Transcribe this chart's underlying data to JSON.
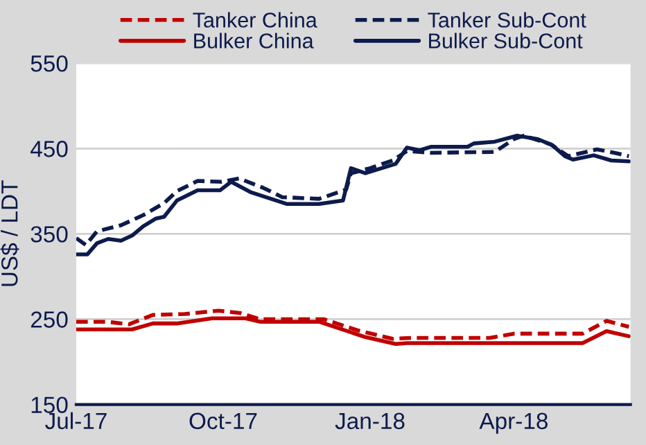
{
  "chart_data": {
    "type": "line",
    "ylabel": "US$ / LDT",
    "ylim": [
      150,
      550
    ],
    "yticks": [
      150,
      250,
      350,
      450,
      550
    ],
    "xlim": [
      "2017-07-01",
      "2018-06-13"
    ],
    "xticks": [
      {
        "value": "2017-07-01",
        "label": "Jul-17"
      },
      {
        "value": "2017-10-01",
        "label": "Oct-17"
      },
      {
        "value": "2018-01-01",
        "label": "Jan-18"
      },
      {
        "value": "2018-04-01",
        "label": "Apr-18"
      }
    ],
    "grid": "y",
    "legend": "top",
    "series": [
      {
        "name": "Tanker China",
        "color": "#c00000",
        "line_style": "dashed",
        "x": [
          "2017-07-01",
          "2017-07-20",
          "2017-08-03",
          "2017-08-18",
          "2017-09-07",
          "2017-09-28",
          "2017-10-12",
          "2017-10-24",
          "2017-12-03",
          "2017-12-24",
          "2018-01-15",
          "2018-01-27",
          "2018-03-17",
          "2018-04-01",
          "2018-05-14",
          "2018-05-29",
          "2018-06-12"
        ],
        "values": [
          247,
          247,
          244,
          255,
          256,
          260,
          257,
          250,
          250,
          237,
          227,
          228,
          228,
          233,
          233,
          248,
          241
        ]
      },
      {
        "name": "Tanker Sub-Cont",
        "color": "#0d1b4c",
        "line_style": "dashed",
        "x": [
          "2017-07-01",
          "2017-07-07",
          "2017-07-14",
          "2017-07-29",
          "2017-08-12",
          "2017-08-25",
          "2017-09-02",
          "2017-09-15",
          "2017-09-30",
          "2017-10-11",
          "2017-10-26",
          "2017-11-07",
          "2017-11-30",
          "2017-12-17",
          "2017-12-20",
          "2018-01-01",
          "2018-01-15",
          "2018-01-24",
          "2018-02-08",
          "2018-03-20",
          "2018-04-01",
          "2018-04-07",
          "2018-04-24",
          "2018-05-05",
          "2018-05-23",
          "2018-06-03",
          "2018-06-12"
        ],
        "values": [
          345,
          337,
          353,
          360,
          372,
          386,
          400,
          412,
          411,
          415,
          404,
          393,
          391,
          402,
          421,
          427,
          436,
          447,
          445,
          446,
          461,
          465,
          455,
          441,
          449,
          445,
          441
        ]
      },
      {
        "name": "Bulker China",
        "color": "#c00000",
        "line_style": "solid",
        "x": [
          "2017-07-01",
          "2017-08-05",
          "2017-08-18",
          "2017-09-02",
          "2017-09-24",
          "2017-10-15",
          "2017-10-24",
          "2017-11-30",
          "2017-12-29",
          "2018-01-17",
          "2018-01-24",
          "2018-05-14",
          "2018-05-29",
          "2018-06-12"
        ],
        "values": [
          238,
          238,
          245,
          245,
          251,
          251,
          247,
          247,
          229,
          221,
          222,
          222,
          236,
          230
        ]
      },
      {
        "name": "Bulker Sub-Cont",
        "color": "#0d1b4c",
        "line_style": "solid",
        "x": [
          "2017-07-01",
          "2017-07-08",
          "2017-07-14",
          "2017-07-21",
          "2017-07-29",
          "2017-08-05",
          "2017-08-12",
          "2017-08-20",
          "2017-08-25",
          "2017-09-02",
          "2017-09-15",
          "2017-09-29",
          "2017-10-06",
          "2017-10-18",
          "2017-10-26",
          "2017-11-10",
          "2017-11-30",
          "2017-12-15",
          "2017-12-20",
          "2017-12-29",
          "2018-01-17",
          "2018-01-24",
          "2018-02-01",
          "2018-02-08",
          "2018-03-03",
          "2018-03-07",
          "2018-03-20",
          "2018-04-03",
          "2018-04-16",
          "2018-04-25",
          "2018-05-03",
          "2018-05-08",
          "2018-05-21",
          "2018-06-01",
          "2018-06-12"
        ],
        "values": [
          326,
          326,
          339,
          344,
          342,
          348,
          359,
          368,
          370,
          389,
          401,
          401,
          411,
          399,
          394,
          385,
          385,
          389,
          427,
          421,
          432,
          451,
          448,
          452,
          452,
          456,
          458,
          465,
          461,
          454,
          441,
          437,
          442,
          436,
          435
        ]
      }
    ]
  }
}
